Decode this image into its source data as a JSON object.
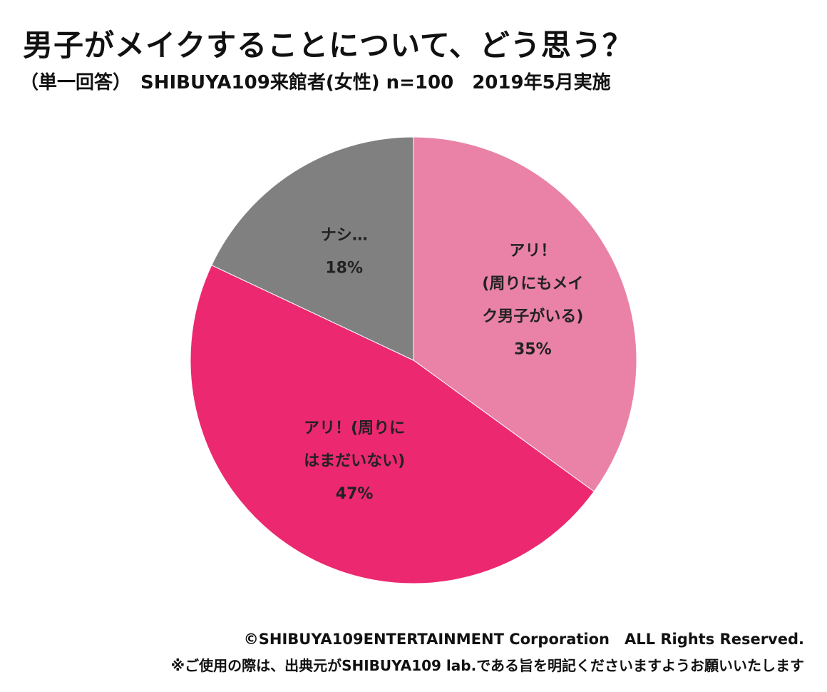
{
  "header": {
    "title": "男子がメイクすることについて、どう思う？",
    "subtitle": "（単一回答）　SHIBUYA109来館者(女性) n=100　2019年5月実施"
  },
  "chart_data": {
    "type": "pie",
    "unit": "%",
    "start_angle_deg": 0,
    "direction": "clockwise",
    "slices": [
      {
        "name": "アリ！(周りにもメイク男子がいる)",
        "label_lines": [
          "アリ！",
          "(周りにもメイ",
          "ク男子がいる)",
          "35%"
        ],
        "value": 35,
        "color": "#e982a6"
      },
      {
        "name": "アリ！(周りにはまだいない)",
        "label_lines": [
          "アリ！(周りに",
          "はまだいない)",
          "47%"
        ],
        "value": 47,
        "color": "#ec2870"
      },
      {
        "name": "ナシ…",
        "label_lines": [
          "ナシ…",
          "18%"
        ],
        "value": 18,
        "color": "#808080"
      }
    ]
  },
  "footer": {
    "copyright": "©SHIBUYA109ENTERTAINMENT Corporation　ALL Rights Reserved.",
    "notice": "※ご使用の際は、出典元がSHIBUYA109 lab.である旨を明記くださいますようお願いいたします"
  }
}
